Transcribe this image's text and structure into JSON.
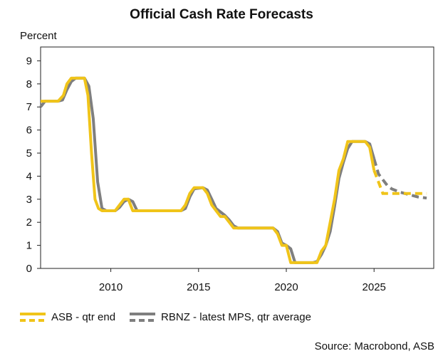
{
  "chart_data": {
    "type": "line",
    "title": "Official Cash Rate Forecasts",
    "ylabel": "Percent",
    "xlim": [
      2006.0,
      2028.4
    ],
    "ylim": [
      0,
      9.6
    ],
    "yticks": [
      0,
      1,
      2,
      3,
      4,
      5,
      6,
      7,
      8,
      9
    ],
    "xticks": [
      2010,
      2015,
      2020,
      2025
    ],
    "grid": false,
    "legend_position": "bottom-left",
    "source": "Source: Macrobond, ASB",
    "series": [
      {
        "name": "ASB - qtr end",
        "color": "#f0c419",
        "actual": [
          [
            2006.0,
            7.25
          ],
          [
            2006.5,
            7.25
          ],
          [
            2007.0,
            7.25
          ],
          [
            2007.3,
            7.5
          ],
          [
            2007.5,
            8.0
          ],
          [
            2007.75,
            8.25
          ],
          [
            2008.25,
            8.25
          ],
          [
            2008.5,
            8.25
          ],
          [
            2008.7,
            7.5
          ],
          [
            2008.9,
            5.0
          ],
          [
            2009.1,
            3.0
          ],
          [
            2009.3,
            2.6
          ],
          [
            2009.5,
            2.5
          ],
          [
            2010.0,
            2.5
          ],
          [
            2010.25,
            2.5
          ],
          [
            2010.5,
            2.75
          ],
          [
            2010.75,
            3.0
          ],
          [
            2011.0,
            3.0
          ],
          [
            2011.25,
            2.5
          ],
          [
            2013.0,
            2.5
          ],
          [
            2014.0,
            2.5
          ],
          [
            2014.25,
            2.75
          ],
          [
            2014.5,
            3.25
          ],
          [
            2014.75,
            3.5
          ],
          [
            2015.0,
            3.5
          ],
          [
            2015.25,
            3.5
          ],
          [
            2015.5,
            3.25
          ],
          [
            2015.75,
            2.75
          ],
          [
            2016.25,
            2.25
          ],
          [
            2016.5,
            2.25
          ],
          [
            2016.75,
            2.0
          ],
          [
            2017.0,
            1.75
          ],
          [
            2019.25,
            1.75
          ],
          [
            2019.5,
            1.5
          ],
          [
            2019.75,
            1.0
          ],
          [
            2020.0,
            1.0
          ],
          [
            2020.25,
            0.25
          ],
          [
            2021.5,
            0.25
          ],
          [
            2021.75,
            0.25
          ],
          [
            2022.0,
            0.75
          ],
          [
            2022.25,
            1.0
          ],
          [
            2022.5,
            2.0
          ],
          [
            2022.75,
            3.0
          ],
          [
            2023.0,
            4.25
          ],
          [
            2023.25,
            4.75
          ],
          [
            2023.5,
            5.5
          ],
          [
            2024.0,
            5.5
          ],
          [
            2024.5,
            5.5
          ],
          [
            2024.75,
            5.25
          ],
          [
            2025.0,
            4.25
          ]
        ],
        "forecast": [
          [
            2025.0,
            4.25
          ],
          [
            2025.25,
            3.75
          ],
          [
            2025.5,
            3.25
          ],
          [
            2025.75,
            3.25
          ],
          [
            2028.0,
            3.25
          ]
        ]
      },
      {
        "name": "RBNZ - latest MPS, qtr average",
        "color": "#7f7f7f",
        "actual": [
          [
            2006.0,
            7.0
          ],
          [
            2006.25,
            7.25
          ],
          [
            2007.0,
            7.25
          ],
          [
            2007.25,
            7.3
          ],
          [
            2007.5,
            7.75
          ],
          [
            2007.75,
            8.1
          ],
          [
            2008.0,
            8.25
          ],
          [
            2008.5,
            8.25
          ],
          [
            2008.75,
            7.9
          ],
          [
            2009.0,
            6.5
          ],
          [
            2009.25,
            3.75
          ],
          [
            2009.5,
            2.6
          ],
          [
            2009.75,
            2.5
          ],
          [
            2010.25,
            2.5
          ],
          [
            2010.5,
            2.65
          ],
          [
            2010.75,
            2.9
          ],
          [
            2011.0,
            3.0
          ],
          [
            2011.25,
            2.9
          ],
          [
            2011.5,
            2.5
          ],
          [
            2014.0,
            2.5
          ],
          [
            2014.25,
            2.6
          ],
          [
            2014.5,
            3.1
          ],
          [
            2014.75,
            3.45
          ],
          [
            2015.25,
            3.5
          ],
          [
            2015.5,
            3.4
          ],
          [
            2015.75,
            3.0
          ],
          [
            2016.0,
            2.6
          ],
          [
            2016.5,
            2.3
          ],
          [
            2016.75,
            2.1
          ],
          [
            2017.0,
            1.85
          ],
          [
            2017.25,
            1.75
          ],
          [
            2019.25,
            1.75
          ],
          [
            2019.5,
            1.6
          ],
          [
            2019.75,
            1.1
          ],
          [
            2020.0,
            1.0
          ],
          [
            2020.25,
            0.85
          ],
          [
            2020.5,
            0.25
          ],
          [
            2021.5,
            0.25
          ],
          [
            2021.75,
            0.3
          ],
          [
            2022.0,
            0.6
          ],
          [
            2022.25,
            1.0
          ],
          [
            2022.5,
            1.6
          ],
          [
            2022.75,
            2.7
          ],
          [
            2023.0,
            3.9
          ],
          [
            2023.25,
            4.6
          ],
          [
            2023.5,
            5.2
          ],
          [
            2023.75,
            5.5
          ],
          [
            2024.5,
            5.5
          ],
          [
            2024.75,
            5.4
          ],
          [
            2025.0,
            4.75
          ]
        ],
        "forecast": [
          [
            2025.0,
            4.75
          ],
          [
            2025.25,
            4.1
          ],
          [
            2025.5,
            3.85
          ],
          [
            2025.75,
            3.6
          ],
          [
            2026.0,
            3.45
          ],
          [
            2026.5,
            3.3
          ],
          [
            2027.0,
            3.2
          ],
          [
            2027.5,
            3.1
          ],
          [
            2028.0,
            3.05
          ]
        ]
      }
    ]
  }
}
